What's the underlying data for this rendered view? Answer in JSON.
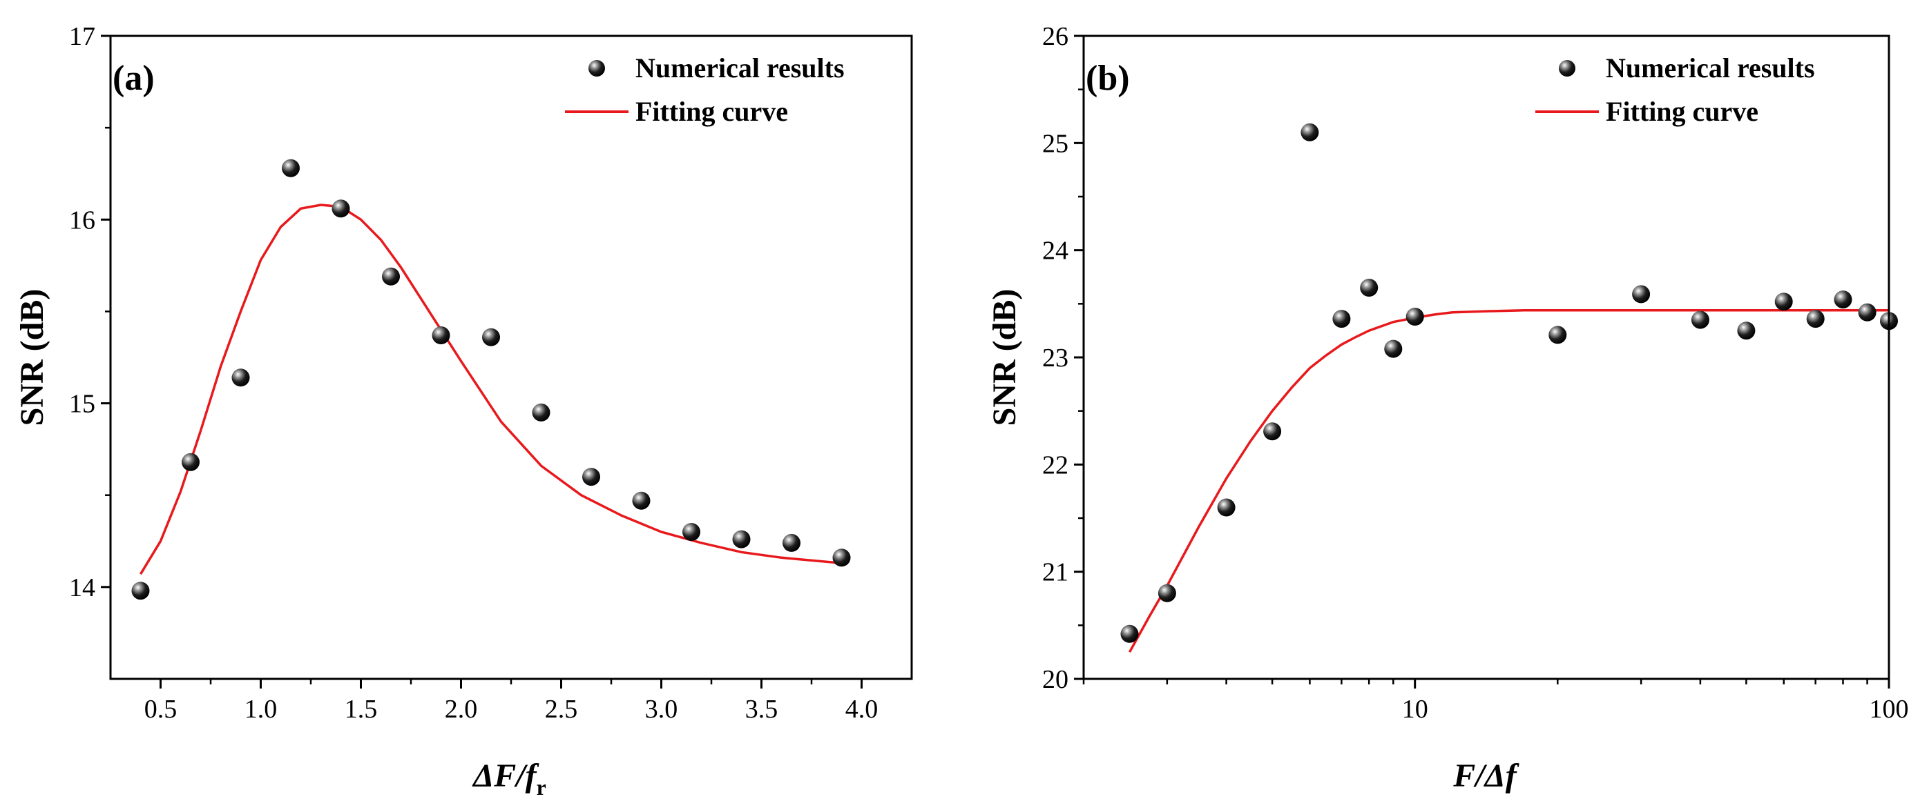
{
  "chart_data": [
    {
      "type": "scatter",
      "panel_label": "(a)",
      "xlabel": "ΔF/f_r",
      "xlabel_parts": {
        "main": "ΔF/f",
        "sub": "r"
      },
      "ylabel": "SNR (dB)",
      "xlim": [
        0.25,
        4.25
      ],
      "ylim": [
        13.5,
        17
      ],
      "x_scale": "linear",
      "x_ticks": [
        0.5,
        1.0,
        1.5,
        2.0,
        2.5,
        3.0,
        3.5,
        4.0
      ],
      "x_tick_labels": [
        "0.5",
        "1.0",
        "1.5",
        "2.0",
        "2.5",
        "3.0",
        "3.5",
        "4.0"
      ],
      "y_ticks": [
        14,
        15,
        16,
        17
      ],
      "y_tick_labels": [
        "14",
        "15",
        "16",
        "17"
      ],
      "grid": false,
      "legend_position": "top-right",
      "series": [
        {
          "name": "Numerical results",
          "style": "markers",
          "color": "#000000",
          "x": [
            0.4,
            0.65,
            0.9,
            1.15,
            1.4,
            1.65,
            1.9,
            2.15,
            2.4,
            2.65,
            2.9,
            3.15,
            3.4,
            3.65,
            3.9
          ],
          "y": [
            13.98,
            14.68,
            15.14,
            16.28,
            16.06,
            15.69,
            15.37,
            15.36,
            14.95,
            14.6,
            14.47,
            14.3,
            14.26,
            14.24,
            14.16
          ]
        },
        {
          "name": "Fitting curve",
          "style": "line",
          "color": "#e8191c",
          "x": [
            0.4,
            0.5,
            0.6,
            0.7,
            0.8,
            0.9,
            1.0,
            1.1,
            1.2,
            1.3,
            1.4,
            1.5,
            1.6,
            1.7,
            1.8,
            1.9,
            2.0,
            2.2,
            2.4,
            2.6,
            2.8,
            3.0,
            3.2,
            3.4,
            3.6,
            3.9
          ],
          "y": [
            14.07,
            14.25,
            14.52,
            14.85,
            15.2,
            15.5,
            15.78,
            15.96,
            16.06,
            16.08,
            16.07,
            16.0,
            15.89,
            15.74,
            15.57,
            15.4,
            15.23,
            14.9,
            14.66,
            14.5,
            14.39,
            14.3,
            14.24,
            14.19,
            14.16,
            14.13
          ]
        }
      ]
    },
    {
      "type": "scatter",
      "panel_label": "(b)",
      "xlabel": "F/Δf",
      "ylabel": "SNR (dB)",
      "xlim": [
        2,
        100
      ],
      "ylim": [
        20,
        26
      ],
      "x_scale": "log",
      "x_ticks": [
        10,
        100
      ],
      "x_tick_labels": [
        "10",
        "100"
      ],
      "x_minor_ticks": [
        2,
        3,
        4,
        5,
        6,
        7,
        8,
        9,
        20,
        30,
        40,
        50,
        60,
        70,
        80,
        90
      ],
      "y_ticks": [
        20,
        21,
        22,
        23,
        24,
        25,
        26
      ],
      "y_tick_labels": [
        "20",
        "21",
        "22",
        "23",
        "24",
        "25",
        "26"
      ],
      "grid": false,
      "legend_position": "top-right",
      "series": [
        {
          "name": "Numerical results",
          "style": "markers",
          "color": "#000000",
          "x": [
            2.5,
            3,
            4,
            5,
            6,
            7,
            8,
            9,
            10,
            20,
            30,
            40,
            50,
            60,
            70,
            80,
            90,
            100
          ],
          "y": [
            20.42,
            20.8,
            21.6,
            22.31,
            25.1,
            23.36,
            23.65,
            23.08,
            23.38,
            23.21,
            23.59,
            23.35,
            23.25,
            23.52,
            23.36,
            23.54,
            23.42,
            23.34
          ]
        },
        {
          "name": "Fitting curve",
          "style": "line",
          "color": "#e8191c",
          "x": [
            2.5,
            2.75,
            3,
            3.5,
            4,
            4.5,
            5,
            5.5,
            6,
            6.5,
            7,
            7.5,
            8,
            9,
            10,
            11,
            12,
            14,
            17,
            20,
            30,
            50,
            100
          ],
          "y": [
            20.25,
            20.58,
            20.87,
            21.42,
            21.87,
            22.22,
            22.5,
            22.72,
            22.9,
            23.02,
            23.12,
            23.19,
            23.25,
            23.33,
            23.37,
            23.4,
            23.42,
            23.43,
            23.44,
            23.44,
            23.44,
            23.44,
            23.44
          ]
        }
      ]
    }
  ]
}
